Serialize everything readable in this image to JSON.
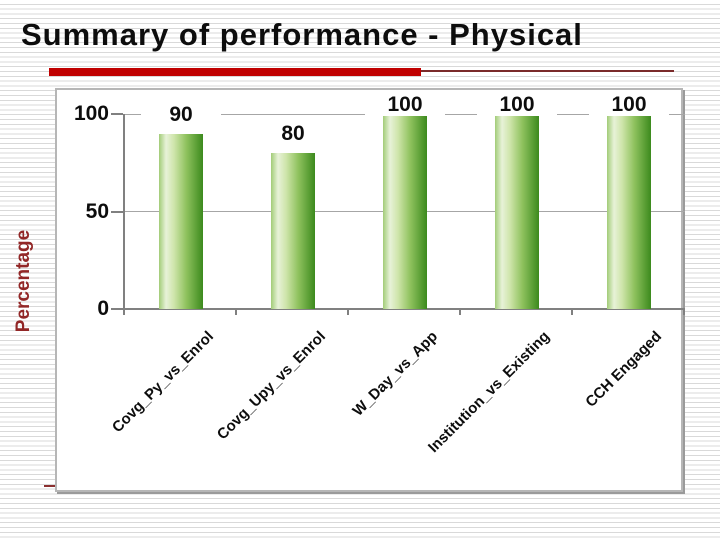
{
  "title": "Summary of performance - Physical",
  "chart_data": {
    "type": "bar",
    "title": "",
    "categories": [
      "Covg_Py_vs_Enrol",
      "Covg_Upy_vs_Enrol",
      "W_Day_vs_App",
      "Institution_vs_Existing",
      "CCH Engaged"
    ],
    "values": [
      90,
      80,
      100,
      100,
      100
    ],
    "data_labels": [
      "90",
      "80",
      "100",
      "100",
      "100"
    ],
    "xlabel": "",
    "ylabel": "Percentage",
    "yticks": [
      100,
      50,
      0
    ],
    "ylim": [
      0,
      100
    ],
    "grid": "horizontal gridlines at 50 and 100",
    "legend": "none",
    "bar_gradient": [
      "#a2cc77",
      "#e7f2d8",
      "#cfe5ab",
      "#8fc25e",
      "#3c8a1d"
    ],
    "category_label_rotation_deg": -45
  },
  "colors": {
    "title_text": "#0d0d0d",
    "accent_underline_thick": "#c00000",
    "accent_underline_thin": "#7a2a2a",
    "red_dash": "#8b2f2f",
    "y_axis_title": "#922727",
    "background_stripe": "#d9d9d9",
    "chart_border": "#b6b6b6",
    "axis_gray": "#808080",
    "gridline_gray": "#a6a6a6"
  }
}
